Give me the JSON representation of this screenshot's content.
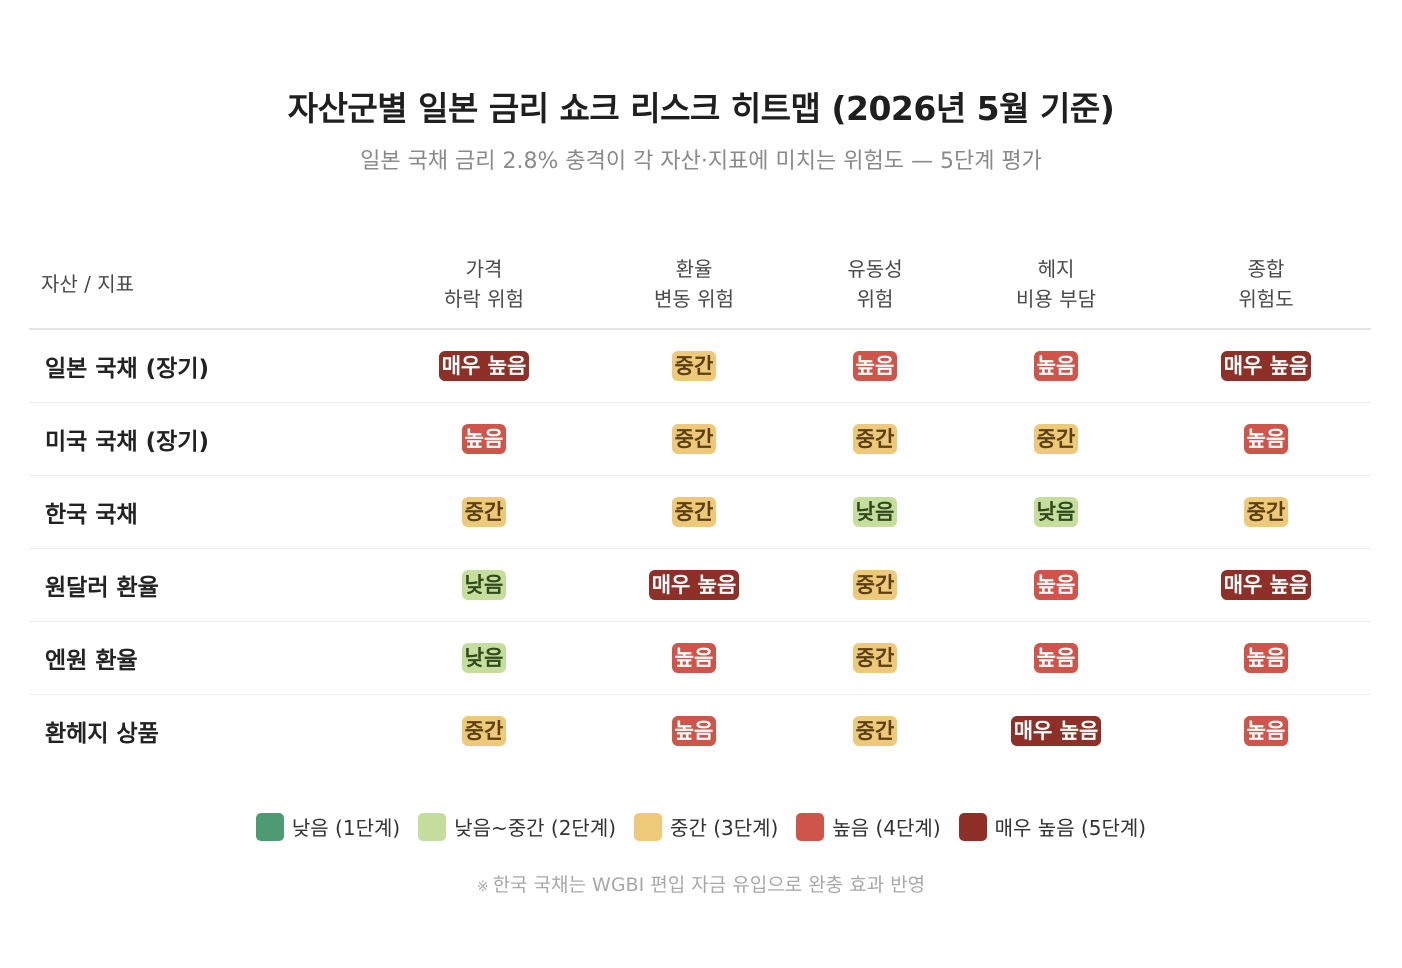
{
  "chart_data": {
    "type": "heatmap",
    "title": "자산군별 일본 금리 쇼크 리스크 히트맵 (2026년 5월 기준)",
    "subtitle": "일본 국채 금리 2.8% 충격이 각 자산·지표에 미치는 위험도 — 5단계 평가",
    "corner_label": "자산 / 지표",
    "columns": [
      [
        "가격",
        "하락 위험"
      ],
      [
        "환율",
        "변동 위험"
      ],
      [
        "유동성",
        "위험"
      ],
      [
        "헤지",
        "비용 부담"
      ],
      [
        "종합",
        "위험도"
      ]
    ],
    "rows": [
      {
        "label": "일본 국채 (장기)",
        "levels": [
          5,
          3,
          4,
          4,
          5
        ]
      },
      {
        "label": "미국 국채 (장기)",
        "levels": [
          4,
          3,
          3,
          3,
          4
        ]
      },
      {
        "label": "한국 국채",
        "levels": [
          3,
          3,
          2,
          2,
          3
        ]
      },
      {
        "label": "원달러 환율",
        "levels": [
          2,
          5,
          3,
          4,
          5
        ]
      },
      {
        "label": "엔원 환율",
        "levels": [
          2,
          4,
          3,
          4,
          4
        ]
      },
      {
        "label": "환헤지 상품",
        "levels": [
          3,
          4,
          3,
          5,
          4
        ]
      }
    ],
    "level_labels": {
      "1": "낮음",
      "2": "낮음",
      "3": "중간",
      "4": "높음",
      "5": "매우 높음"
    },
    "level_colors": {
      "1": {
        "bg": "#4e9a72",
        "fg": "#ffffff"
      },
      "2": {
        "bg": "#c6de9d",
        "fg": "#2f4a1b"
      },
      "3": {
        "bg": "#efc97a",
        "fg": "#5a4010"
      },
      "4": {
        "bg": "#cf544a",
        "fg": "#ffffff"
      },
      "5": {
        "bg": "#8e2f28",
        "fg": "#ffffff"
      }
    },
    "legend": [
      {
        "label": "낮음 (1단계)",
        "color": "#4e9a72"
      },
      {
        "label": "낮음~중간 (2단계)",
        "color": "#c6de9d"
      },
      {
        "label": "중간 (3단계)",
        "color": "#efc97a"
      },
      {
        "label": "높음 (4단계)",
        "color": "#cf544a"
      },
      {
        "label": "매우 높음 (5단계)",
        "color": "#8e2f28"
      }
    ]
  },
  "note": {
    "mark": "※",
    "text": "한국 국채는 WGBI 편입 자금 유입으로 완충 효과 반영"
  }
}
